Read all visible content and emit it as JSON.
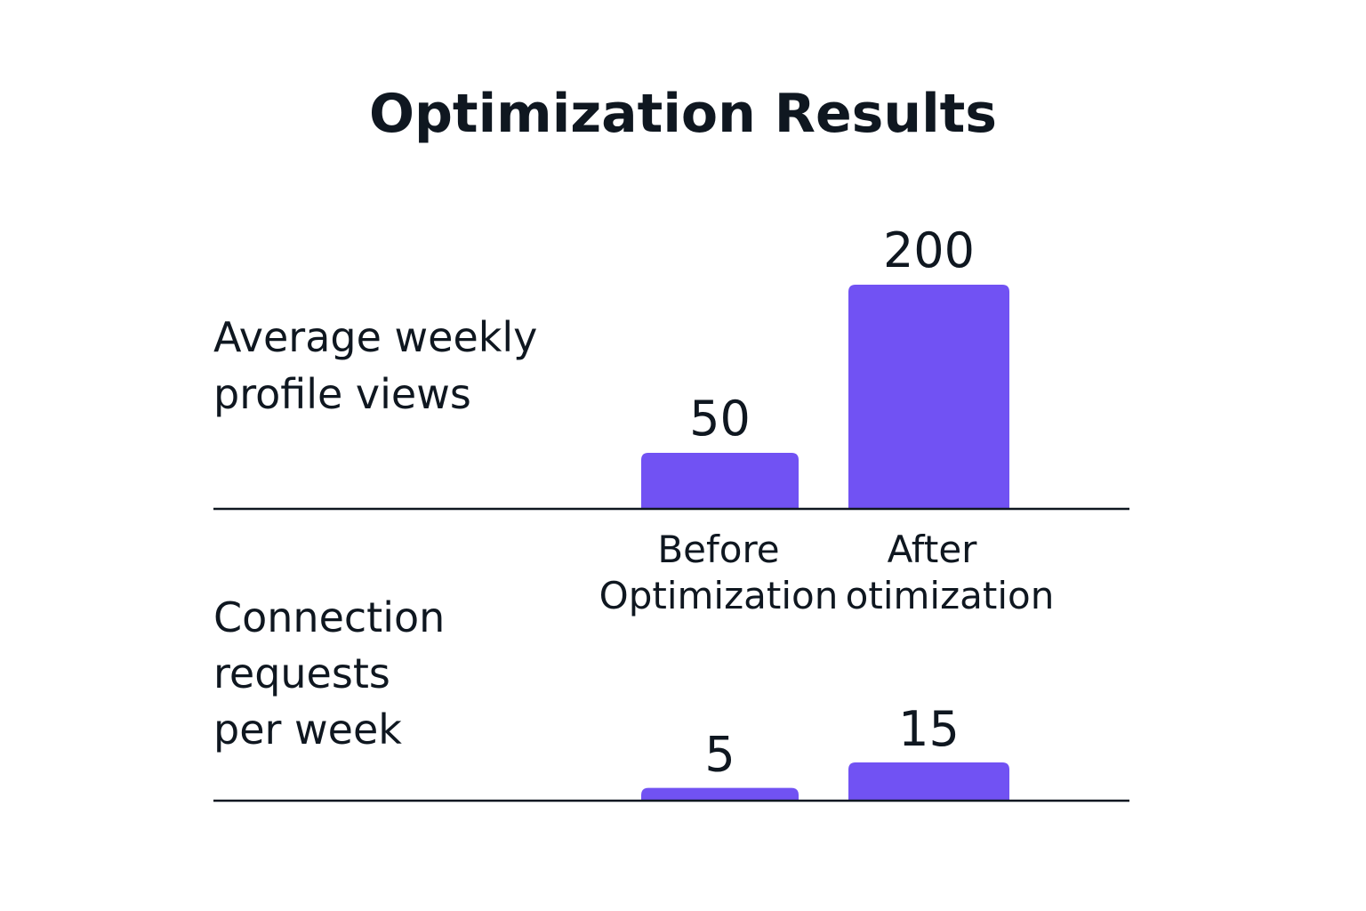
{
  "chart_data": [
    {
      "type": "bar",
      "ylabel_lines": [
        "Average weekly",
        "profile views"
      ],
      "categories": [
        "Before",
        "After"
      ],
      "values": [
        50,
        200
      ],
      "ylim": [
        0,
        200
      ],
      "grid": false
    },
    {
      "type": "bar",
      "ylabel_lines": [
        "Connection",
        "requests",
        "per week"
      ],
      "categories": [
        "Before",
        "After"
      ],
      "values": [
        5,
        15
      ],
      "ylim": [
        0,
        15
      ],
      "grid": false
    }
  ],
  "title": "Optimization Results",
  "category_label_lines": [
    [
      "Before",
      "Optimization"
    ],
    [
      "After",
      "otimization"
    ]
  ],
  "colors": {
    "bar": "#7152f3",
    "axis": "#0f1720",
    "text": "#0f1720"
  }
}
